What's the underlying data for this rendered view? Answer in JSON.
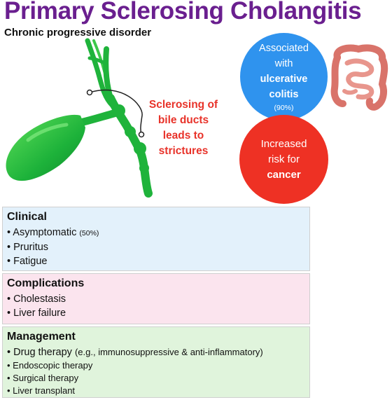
{
  "title": "Primary Sclerosing Cholangitis",
  "subtitle": "Chronic progressive disorder",
  "annotation": "Sclerosing of bile ducts leads to strictures",
  "assoc_circle": {
    "line1": "Associated",
    "line2": "with",
    "line3": "ulcerative",
    "line4": "colitis",
    "note": "(90%)",
    "color": "#2f93ee"
  },
  "cancer_circle": {
    "line1": "Increased",
    "line2": "risk for",
    "line3": "cancer",
    "color": "#ee3124"
  },
  "clinical": {
    "heading": "Clinical",
    "items": [
      {
        "text": "• Asymptomatic",
        "note": "(50%)"
      },
      {
        "text": "• Pruritus"
      },
      {
        "text": "• Fatigue"
      }
    ],
    "bg": "#e3f1fb"
  },
  "complications": {
    "heading": "Complications",
    "items": [
      "• Cholestasis",
      "• Liver failure"
    ],
    "bg": "#fbe4ee"
  },
  "management": {
    "heading": "Management",
    "items": [
      {
        "text": "• Drug therapy",
        "note": "(e.g., immunosuppressive & anti-inflammatory)"
      },
      {
        "text": "• Endoscopic therapy"
      },
      {
        "text": "• Surgical therapy"
      },
      {
        "text": "• Liver transplant"
      }
    ],
    "bg": "#e0f4dc"
  },
  "icons": [
    "gallbladder-bile-duct-illustration",
    "intestine-icon"
  ]
}
